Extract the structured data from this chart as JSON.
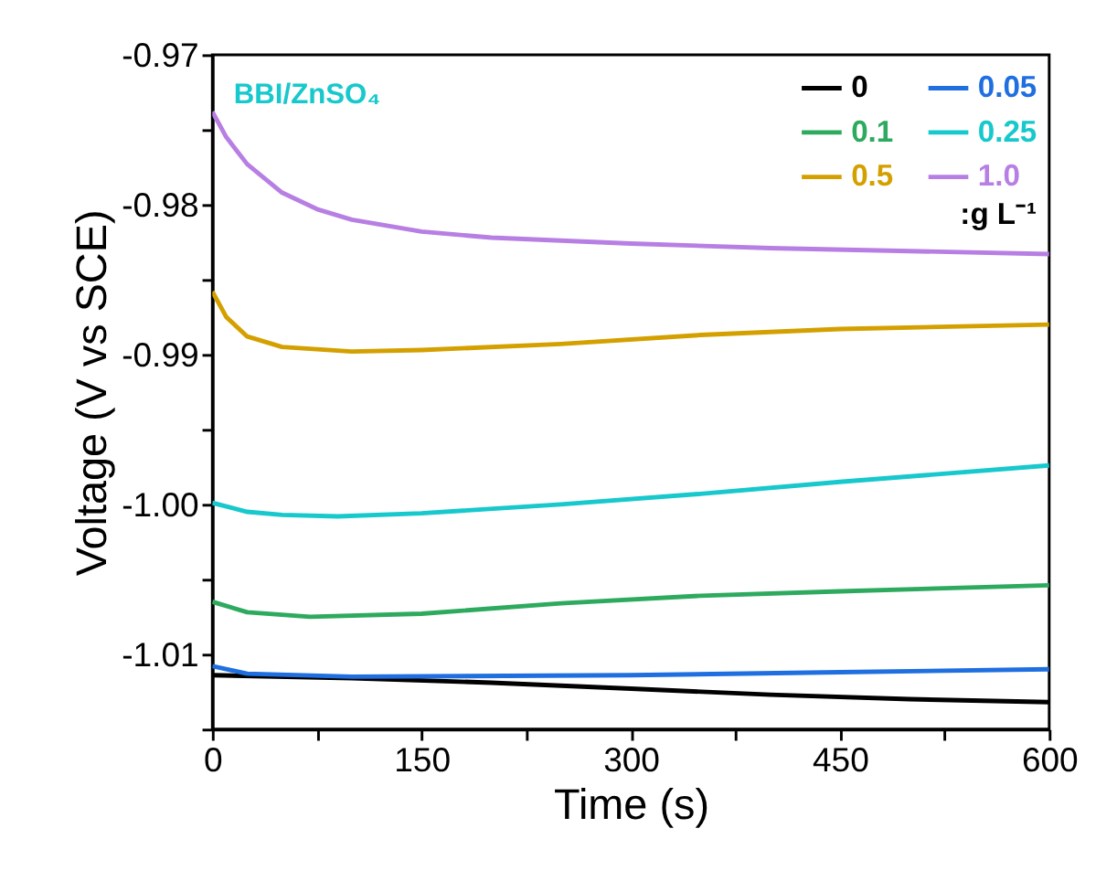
{
  "chart_data": {
    "type": "line",
    "xlabel": "Time (s)",
    "ylabel": "Voltage (V vs SCE)",
    "legend_title": ":g L⁻¹",
    "legend": "top right",
    "grid": false,
    "marker": "none",
    "line_style": "solid",
    "annotations": [
      "BBI/ZnSO₄"
    ],
    "xlim": [
      0,
      600
    ],
    "xticks": [
      0,
      {
        "value": 75,
        "label": null
      },
      150,
      {
        "value": 225,
        "label": null
      },
      300,
      {
        "value": 375,
        "label": null
      },
      450,
      {
        "value": 525,
        "label": null
      },
      600
    ],
    "ylim": [
      -1.015,
      -0.97
    ],
    "yticks": [
      -0.97,
      {
        "value": -0.975,
        "label": null
      },
      -0.98,
      {
        "value": -0.985,
        "label": null
      },
      -0.99,
      {
        "value": -0.995,
        "label": null
      },
      {
        "value": -1.0,
        "label": "-1.00"
      },
      {
        "value": -1.005,
        "label": null
      },
      -1.01,
      {
        "value": -1.015,
        "label": null
      }
    ],
    "series": [
      {
        "name": "0",
        "color": "#000000",
        "x": [
          0,
          100,
          200,
          300,
          400,
          500,
          600
        ],
        "values": [
          -1.0114,
          -1.0116,
          -1.0119,
          -1.0123,
          -1.0127,
          -1.013,
          -1.0132
        ]
      },
      {
        "name": "0.05",
        "color": "#1f6fe0",
        "x": [
          0,
          25,
          100,
          300,
          450,
          600
        ],
        "values": [
          -1.0108,
          -1.0113,
          -1.0115,
          -1.0114,
          -1.0112,
          -1.011
        ]
      },
      {
        "name": "0.1",
        "color": "#2eaa5f",
        "x": [
          0,
          25,
          70,
          150,
          250,
          350,
          450,
          600
        ],
        "values": [
          -1.0065,
          -1.0072,
          -1.0075,
          -1.0073,
          -1.0066,
          -1.0061,
          -1.0058,
          -1.0054
        ]
      },
      {
        "name": "0.25",
        "color": "#17c8cc",
        "x": [
          0,
          25,
          50,
          90,
          150,
          250,
          350,
          450,
          600
        ],
        "values": [
          -0.9999,
          -1.0005,
          -1.0007,
          -1.0008,
          -1.0006,
          -1.0,
          -0.9993,
          -0.9985,
          -0.9974
        ]
      },
      {
        "name": "0.5",
        "color": "#d4a000",
        "x": [
          0,
          10,
          25,
          50,
          100,
          150,
          250,
          350,
          450,
          600
        ],
        "values": [
          -0.9858,
          -0.9875,
          -0.9888,
          -0.9895,
          -0.9898,
          -0.9897,
          -0.9893,
          -0.9887,
          -0.9883,
          -0.988
        ]
      },
      {
        "name": "1.0",
        "color": "#b77fe3",
        "x": [
          0,
          10,
          25,
          50,
          75,
          100,
          150,
          200,
          300,
          400,
          500,
          600
        ],
        "values": [
          -0.9738,
          -0.9755,
          -0.9773,
          -0.9792,
          -0.9803,
          -0.981,
          -0.9818,
          -0.9822,
          -0.9826,
          -0.9829,
          -0.9831,
          -0.9833
        ]
      }
    ]
  }
}
